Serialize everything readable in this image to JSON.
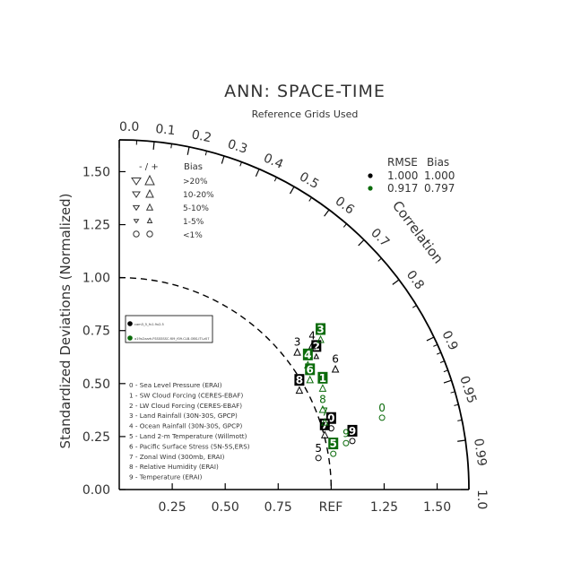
{
  "chart_data": {
    "type": "taylor-diagram",
    "title": "ANN: SPACE-TIME",
    "subtitle": "Reference Grids Used",
    "ylabel": "Standardized Deviations (Normalized)",
    "arc_label": "Correlation",
    "ref_label": "REF",
    "sd_range": [
      0,
      1.65
    ],
    "sd_ticks": [
      "0.00",
      "0.25",
      "0.50",
      "0.75",
      "1.00",
      "1.25",
      "1.50"
    ],
    "x_ticks": [
      "0.25",
      "0.50",
      "0.75",
      "1.25",
      "1.50"
    ],
    "corr_ticks": [
      "0.0",
      "0.1",
      "0.2",
      "0.3",
      "0.4",
      "0.5",
      "0.6",
      "0.7",
      "0.8",
      "0.9",
      "0.95",
      "0.99",
      "1.0"
    ],
    "ref_circle_sd": 1.0,
    "colors": {
      "model1": "#000000",
      "model2": "#0b6b0b",
      "axes": "#000000",
      "text": "#333333"
    },
    "bias_legend": {
      "header": [
        "- / +",
        "Bias"
      ],
      "rows": [
        ">20%",
        "10-20%",
        "5-10%",
        "1-5%",
        "<1%"
      ]
    },
    "stats_legend": {
      "header": [
        "RMSE",
        "Bias"
      ],
      "rows": [
        {
          "rmse": "1.000",
          "bias": "1.000",
          "color": "#000000"
        },
        {
          "rmse": "0.917",
          "bias": "0.797",
          "color": "#0b6b0b"
        }
      ]
    },
    "model_legend": [
      {
        "name": "cam3_5_fv1.9x2.5",
        "color": "#000000"
      },
      {
        "name": "a19x2zzzh.FSSSSSSC.f09_f09.CLB-OBS-ITI-z07",
        "color": "#0b6b0b"
      }
    ],
    "variables": [
      "0 - Sea Level Pressure (ERAI)",
      "1 - SW Cloud Forcing (CERES-EBAF)",
      "2 - LW Cloud Forcing (CERES-EBAF)",
      "3 - Land Rainfall (30N-30S, GPCP)",
      "4 - Ocean Rainfall (30N-30S, GPCP)",
      "5 - Land 2-m Temperature (Willmott)",
      "6 - Pacific Surface Stress (5N-5S,ERS)",
      "7 - Zonal Wind (300mb, ERAI)",
      "8 - Relative Humidity (ERAI)",
      "9 - Temperature (ERAI)"
    ],
    "series": [
      {
        "name": "cam3_5_fv1.9x2.5",
        "points": [
          {
            "label": "0",
            "x": 1.0,
            "y": 0.31,
            "boxed": true,
            "marker": "circle"
          },
          {
            "label": "2",
            "x": 0.93,
            "y": 0.65,
            "boxed": true,
            "marker": "up-small"
          },
          {
            "label": "3",
            "x": 0.84,
            "y": 0.67,
            "boxed": false,
            "marker": "up"
          },
          {
            "label": "4",
            "x": 0.91,
            "y": 0.7,
            "boxed": false,
            "marker": "up"
          },
          {
            "label": "5",
            "x": 0.94,
            "y": 0.17,
            "boxed": false,
            "marker": "circle"
          },
          {
            "label": "6",
            "x": 1.02,
            "y": 0.59,
            "boxed": false,
            "marker": "up"
          },
          {
            "label": "7",
            "x": 0.97,
            "y": 0.28,
            "boxed": true,
            "marker": "up"
          },
          {
            "label": "8",
            "x": 0.85,
            "y": 0.49,
            "boxed": true,
            "marker": "up"
          },
          {
            "label": "9",
            "x": 1.1,
            "y": 0.25,
            "boxed": true,
            "marker": "circle"
          }
        ]
      },
      {
        "name": "a19x2zzzh.FSSSSSSC.f09_f09.CLB-OBS-ITI-z07",
        "points": [
          {
            "label": "0",
            "x": 1.24,
            "y": 0.36,
            "boxed": false,
            "marker": "circle"
          },
          {
            "label": "1",
            "x": 0.96,
            "y": 0.5,
            "boxed": true,
            "marker": "up"
          },
          {
            "label": "3",
            "x": 0.95,
            "y": 0.73,
            "boxed": true,
            "marker": "up"
          },
          {
            "label": "4",
            "x": 0.89,
            "y": 0.61,
            "boxed": true,
            "marker": "up"
          },
          {
            "label": "5",
            "x": 1.01,
            "y": 0.19,
            "boxed": true,
            "marker": "circle"
          },
          {
            "label": "6",
            "x": 0.9,
            "y": 0.54,
            "boxed": true,
            "marker": "up"
          },
          {
            "label": "7",
            "x": 0.97,
            "y": 0.34,
            "boxed": false,
            "marker": "up"
          },
          {
            "label": "8",
            "x": 0.96,
            "y": 0.4,
            "boxed": false,
            "marker": "up"
          },
          {
            "label": "9",
            "x": 1.07,
            "y": 0.24,
            "boxed": false,
            "marker": "circle"
          }
        ]
      }
    ]
  }
}
